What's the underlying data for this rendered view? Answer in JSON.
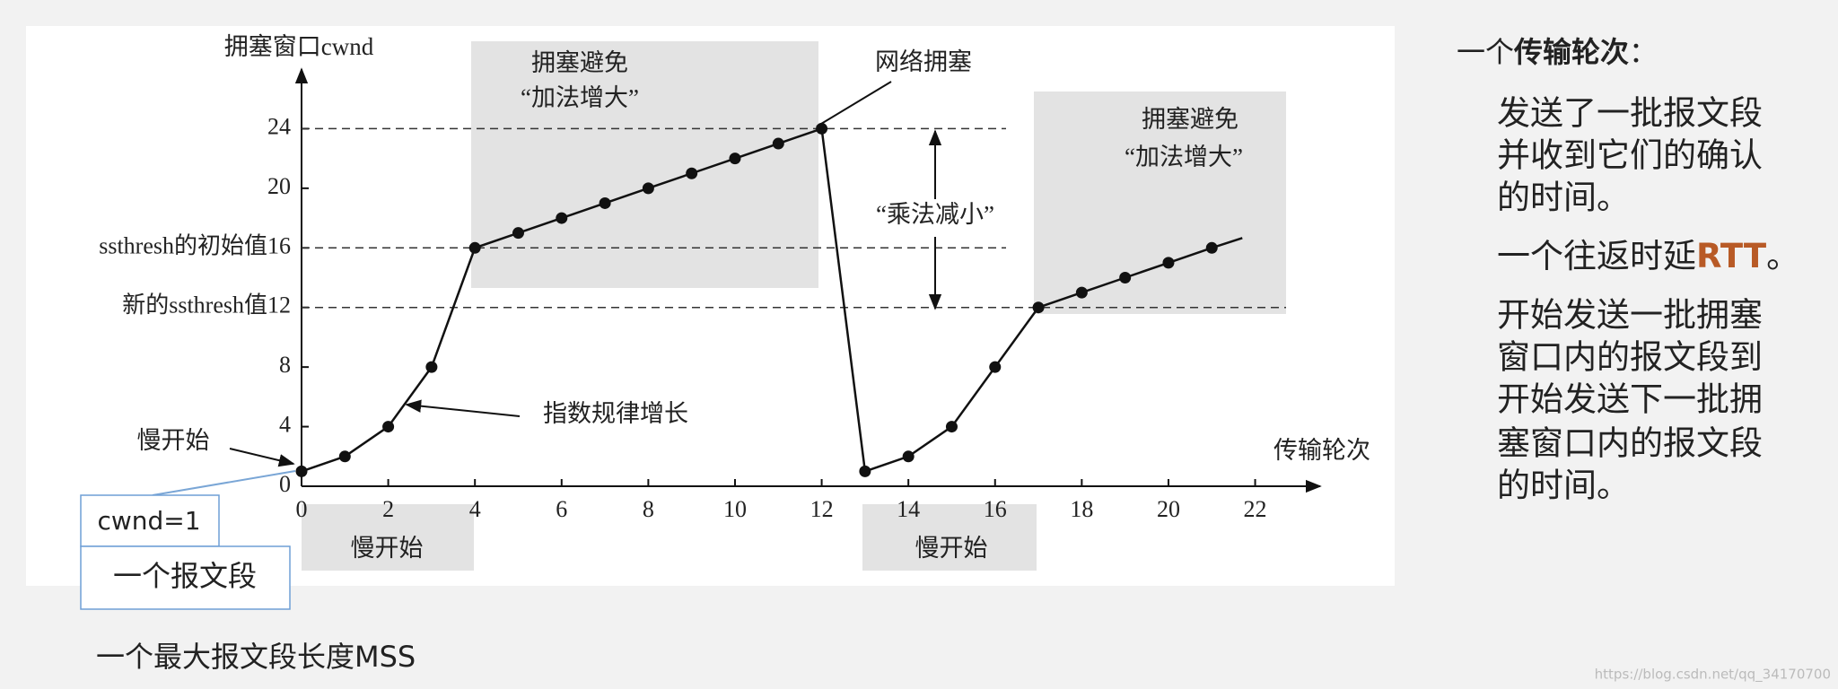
{
  "chart_data": {
    "type": "line",
    "axis_labels": {
      "y": "拥塞窗口cwnd",
      "x": "传输轮次"
    },
    "x": [
      0,
      1,
      2,
      3,
      4,
      5,
      6,
      7,
      8,
      9,
      10,
      11,
      12,
      13,
      14,
      15,
      16,
      17,
      18,
      19,
      20,
      21
    ],
    "series": [
      {
        "name": "cwnd",
        "color": "#111111",
        "values": [
          1,
          2,
          4,
          8,
          16,
          17,
          18,
          19,
          20,
          21,
          22,
          23,
          24,
          1,
          2,
          4,
          8,
          12,
          13,
          14,
          15,
          16
        ]
      }
    ],
    "xlim": [
      0,
      23.5
    ],
    "ylim": [
      0,
      28
    ],
    "xticks": [
      0,
      2,
      4,
      6,
      8,
      10,
      12,
      14,
      16,
      18,
      20,
      22
    ],
    "yticks": [
      0,
      4,
      8,
      {
        "value": 12,
        "label": "新的ssthresh值12"
      },
      {
        "value": 16,
        "label": "ssthresh的初始值16"
      },
      20,
      24
    ],
    "annotations": [
      "拥塞避免",
      "“加法增大”",
      "网络拥塞",
      "“乘法减小”",
      "拥塞避免",
      "“加法增大”",
      "指数规律增长",
      "慢开始",
      "慢开始",
      "慢开始",
      "cwnd=1",
      "一个报文段",
      "一个最大报文段长度MSS"
    ]
  },
  "side_panel": {
    "heading": {
      "prefix": "一个",
      "bold": "传输轮次",
      "suffix": "："
    },
    "paragraph_1": [
      "发送了一批报文段",
      "并收到它们的确认",
      "的时间。"
    ],
    "paragraph_2": {
      "text": "一个往返时延",
      "highlight": "RTT",
      "suffix": "。"
    },
    "paragraph_3": [
      "开始发送一批拥塞",
      "窗口内的报文段到",
      "开始发送下一批拥",
      "塞窗口内的报文段",
      "的时间。"
    ]
  },
  "watermark": "https://blog.csdn.net/qq_34170700"
}
